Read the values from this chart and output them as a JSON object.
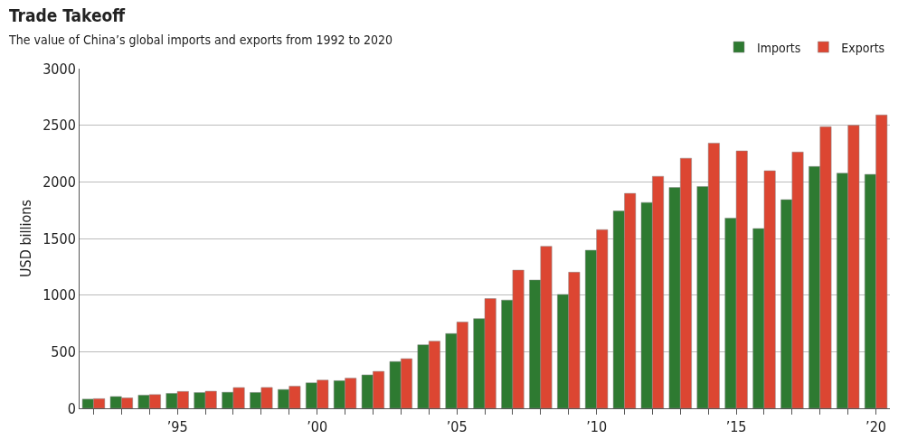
{
  "chart_data": {
    "type": "bar",
    "title": "Trade Takeoff",
    "subtitle": "The value of China’s global imports and exports from 1992 to 2020",
    "ylabel": "USD billions",
    "x": [
      1992,
      1993,
      1994,
      1995,
      1996,
      1997,
      1998,
      1999,
      2000,
      2001,
      2002,
      2003,
      2004,
      2005,
      2006,
      2007,
      2008,
      2009,
      2010,
      2011,
      2012,
      2013,
      2014,
      2015,
      2016,
      2017,
      2018,
      2019,
      2020
    ],
    "series": [
      {
        "name": "Imports",
        "color": "#2e7a31",
        "values": [
          81,
          104,
          116,
          132,
          139,
          142,
          140,
          166,
          225,
          244,
          295,
          413,
          561,
          660,
          792,
          956,
          1133,
          1006,
          1396,
          1743,
          1818,
          1950,
          1959,
          1680,
          1588,
          1843,
          2136,
          2077,
          2066
        ]
      },
      {
        "name": "Exports",
        "color": "#dc4632",
        "values": [
          85,
          92,
          121,
          149,
          151,
          183,
          184,
          195,
          249,
          266,
          326,
          438,
          593,
          762,
          969,
          1220,
          1431,
          1202,
          1578,
          1898,
          2049,
          2209,
          2342,
          2273,
          2098,
          2263,
          2487,
          2499,
          2591
        ]
      }
    ],
    "xlim": [
      1991.5,
      2020.5
    ],
    "xticks": [
      {
        "value": 1992,
        "label": null
      },
      {
        "value": 1993,
        "label": null
      },
      {
        "value": 1994,
        "label": null
      },
      {
        "value": 1995,
        "label": "’95"
      },
      {
        "value": 1996,
        "label": null
      },
      {
        "value": 1997,
        "label": null
      },
      {
        "value": 1998,
        "label": null
      },
      {
        "value": 1999,
        "label": null
      },
      {
        "value": 2000,
        "label": "’00"
      },
      {
        "value": 2001,
        "label": null
      },
      {
        "value": 2002,
        "label": null
      },
      {
        "value": 2003,
        "label": null
      },
      {
        "value": 2004,
        "label": null
      },
      {
        "value": 2005,
        "label": "’05"
      },
      {
        "value": 2006,
        "label": null
      },
      {
        "value": 2007,
        "label": null
      },
      {
        "value": 2008,
        "label": null
      },
      {
        "value": 2009,
        "label": null
      },
      {
        "value": 2010,
        "label": "’10"
      },
      {
        "value": 2011,
        "label": null
      },
      {
        "value": 2012,
        "label": null
      },
      {
        "value": 2013,
        "label": null
      },
      {
        "value": 2014,
        "label": null
      },
      {
        "value": 2015,
        "label": "’15"
      },
      {
        "value": 2016,
        "label": null
      },
      {
        "value": 2017,
        "label": null
      },
      {
        "value": 2018,
        "label": null
      },
      {
        "value": 2019,
        "label": null
      },
      {
        "value": 2020,
        "label": "’20"
      }
    ],
    "ylim": [
      0,
      3000
    ],
    "yticks": [
      0,
      500,
      1000,
      1500,
      2000,
      2500,
      3000
    ],
    "grid": "y",
    "legend": "top right"
  }
}
